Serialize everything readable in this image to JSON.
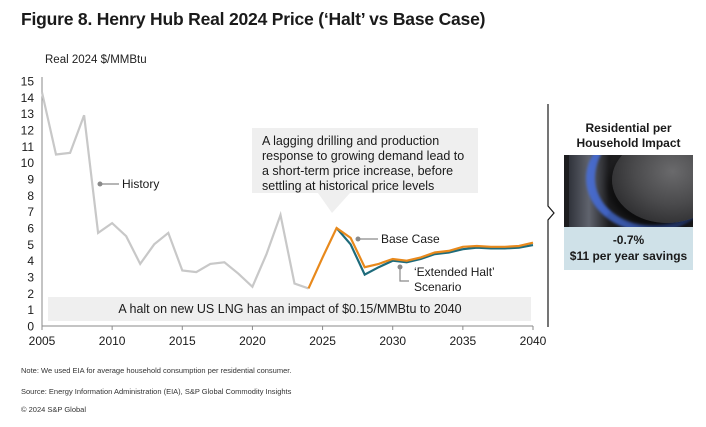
{
  "title": "Figure 8. Henry Hub Real 2024 Price (‘Halt’ vs Base Case)",
  "chart_data": {
    "type": "line",
    "title": "Figure 8. Henry Hub Real 2024 Price (‘Halt’ vs Base Case)",
    "ylabel": "Real 2024 $/MMBtu",
    "xlabel": "",
    "xlim": [
      2005,
      2040
    ],
    "ylim": [
      0,
      15
    ],
    "x_ticks": [
      2005,
      2010,
      2015,
      2020,
      2025,
      2030,
      2035,
      2040
    ],
    "y_ticks": [
      0,
      1,
      2,
      3,
      4,
      5,
      6,
      7,
      8,
      9,
      10,
      11,
      12,
      13,
      14,
      15
    ],
    "grid": false,
    "series": [
      {
        "name": "History",
        "color": "#c8c8c8",
        "x": [
          2005,
          2006,
          2007,
          2008,
          2009,
          2010,
          2011,
          2012,
          2013,
          2014,
          2015,
          2016,
          2017,
          2018,
          2019,
          2020,
          2021,
          2022,
          2023,
          2024
        ],
        "values": [
          14.3,
          10.5,
          10.6,
          12.9,
          5.7,
          6.3,
          5.5,
          3.8,
          5.0,
          5.7,
          3.4,
          3.3,
          3.8,
          3.9,
          3.2,
          2.4,
          4.4,
          6.8,
          2.6,
          2.3
        ]
      },
      {
        "name": "‘Extended Halt’ Scenario",
        "color": "#1e6b7b",
        "x": [
          2026,
          2027,
          2028,
          2029,
          2030,
          2031,
          2032,
          2033,
          2034,
          2035,
          2036,
          2037,
          2038,
          2039,
          2040
        ],
        "values": [
          6.0,
          5.0,
          3.15,
          3.6,
          4.0,
          3.9,
          4.1,
          4.4,
          4.5,
          4.7,
          4.8,
          4.75,
          4.75,
          4.8,
          4.95
        ]
      },
      {
        "name": "Base Case",
        "color": "#e8891c",
        "x": [
          2024,
          2025,
          2026,
          2027,
          2028,
          2029,
          2030,
          2031,
          2032,
          2033,
          2034,
          2035,
          2036,
          2037,
          2038,
          2039,
          2040
        ],
        "values": [
          2.3,
          4.2,
          6.0,
          5.4,
          3.6,
          3.8,
          4.1,
          4.0,
          4.2,
          4.5,
          4.6,
          4.85,
          4.9,
          4.85,
          4.85,
          4.9,
          5.1
        ]
      }
    ],
    "annotations": {
      "history": "History",
      "base_case": "Base Case",
      "halt_line1": "‘Extended Halt’",
      "halt_line2": "Scenario",
      "callout": [
        "A lagging drilling and production",
        "response to growing demand lead to",
        "a short-term price increase, before",
        "settling at historical price levels"
      ],
      "band": "A halt on new US LNG has an impact of $0.15/MMBtu to 2040"
    }
  },
  "side_panel": {
    "title_line1": "Residential per",
    "title_line2": "Household Impact",
    "image": "gas-burner-flame-image",
    "pct": "-0.7%",
    "savings": "$11 per year savings"
  },
  "notes": {
    "note": "Note: We used EIA for average household consumption per residential consumer.",
    "source": "Source: Energy Information Administration (EIA), S&P Global Commodity Insights",
    "copyright": "© 2024 S&P Global"
  }
}
